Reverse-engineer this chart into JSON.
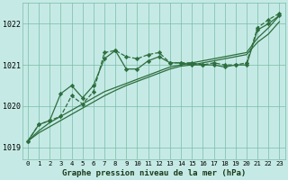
{
  "title": "Graphe pression niveau de la mer (hPa)",
  "background_color": "#c5eae5",
  "grid_color": "#7abba8",
  "line_color": "#2d6e3e",
  "x_ticks": [
    0,
    1,
    2,
    3,
    4,
    5,
    6,
    7,
    8,
    9,
    10,
    11,
    12,
    13,
    14,
    15,
    16,
    17,
    18,
    19,
    20,
    21,
    22,
    23
  ],
  "ylim": [
    1018.7,
    1022.5
  ],
  "yticks": [
    1019,
    1020,
    1021,
    1022
  ],
  "series": [
    {
      "y": [
        1019.15,
        1019.55,
        1019.65,
        1019.75,
        1020.25,
        1020.05,
        1020.35,
        1021.3,
        1021.35,
        1021.2,
        1021.15,
        1021.25,
        1021.3,
        1021.05,
        1021.05,
        1021.05,
        1021.0,
        1021.05,
        1021.0,
        1021.0,
        1021.05,
        1021.9,
        1022.1,
        1022.25
      ],
      "marker": "D",
      "markersize": 2.2,
      "linewidth": 0.9,
      "linestyle": "--"
    },
    {
      "y": [
        1019.15,
        1019.55,
        1019.65,
        1020.3,
        1020.5,
        1020.2,
        1020.5,
        1021.15,
        1021.35,
        1020.9,
        1020.9,
        1021.1,
        1021.2,
        1021.05,
        1021.05,
        1021.0,
        1021.0,
        1021.0,
        1020.95,
        1021.0,
        1021.0,
        1021.85,
        1022.0,
        1022.2
      ],
      "marker": "D",
      "markersize": 2.2,
      "linewidth": 0.9,
      "linestyle": "-"
    },
    {
      "y": [
        1019.15,
        1019.4,
        1019.6,
        1019.75,
        1019.9,
        1020.05,
        1020.2,
        1020.35,
        1020.45,
        1020.55,
        1020.65,
        1020.75,
        1020.85,
        1020.95,
        1021.0,
        1021.05,
        1021.1,
        1021.15,
        1021.2,
        1021.25,
        1021.3,
        1021.65,
        1021.9,
        1022.2
      ],
      "marker": null,
      "markersize": 0,
      "linewidth": 0.9,
      "linestyle": "-"
    },
    {
      "y": [
        1019.15,
        1019.35,
        1019.5,
        1019.65,
        1019.8,
        1019.95,
        1020.1,
        1020.25,
        1020.38,
        1020.5,
        1020.6,
        1020.7,
        1020.8,
        1020.9,
        1020.97,
        1021.0,
        1021.05,
        1021.1,
        1021.15,
        1021.2,
        1021.25,
        1021.55,
        1021.75,
        1022.05
      ],
      "marker": null,
      "markersize": 0,
      "linewidth": 0.9,
      "linestyle": "-"
    }
  ],
  "ylabel_fontsize": 6,
  "xlabel_fontsize": 6.5,
  "tick_fontsize": 5.2
}
